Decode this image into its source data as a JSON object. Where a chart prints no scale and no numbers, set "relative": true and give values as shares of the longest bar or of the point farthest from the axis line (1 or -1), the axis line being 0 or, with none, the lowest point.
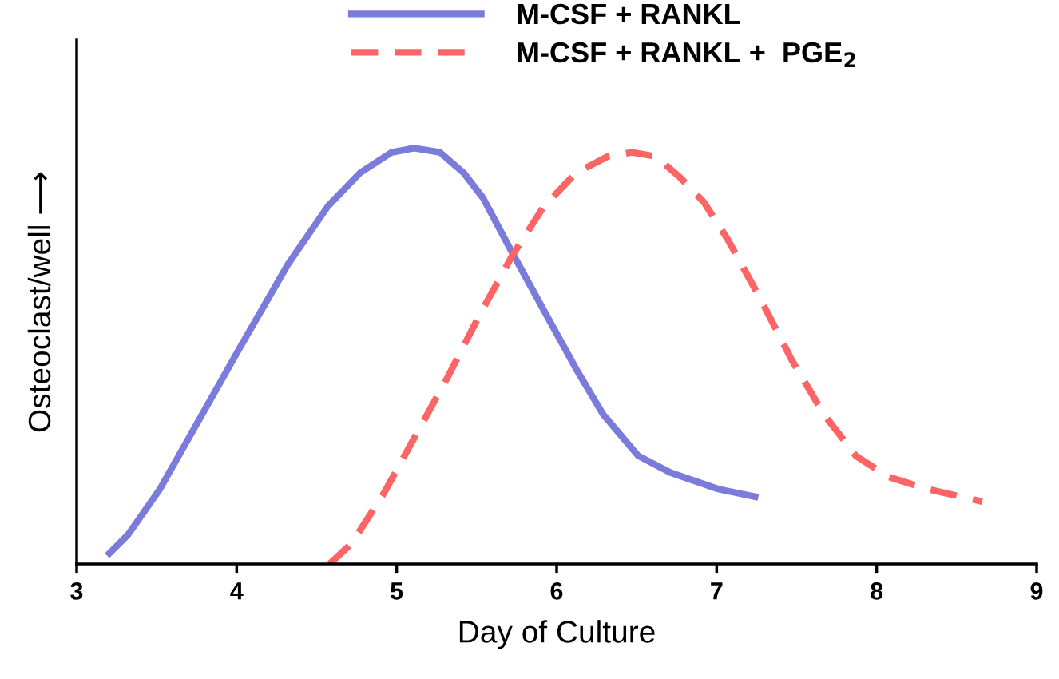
{
  "chart_data": {
    "type": "line",
    "relative": true,
    "xlabel": "Day of Culture",
    "ylabel": "Osteoclast/well ⟶",
    "xlim": [
      3,
      9
    ],
    "xticks": [
      3,
      4,
      5,
      6,
      7,
      8,
      9
    ],
    "grid": false,
    "legend": "top",
    "marker": "none",
    "series": [
      {
        "name": "M-CSF + RANKL",
        "color": "#7b7bdc",
        "line_style": "solid",
        "x": [
          3.19,
          3.32,
          3.52,
          3.77,
          4.02,
          4.32,
          4.57,
          4.77,
          4.97,
          5.11,
          5.27,
          5.42,
          5.54,
          5.72,
          5.92,
          6.12,
          6.29,
          6.51,
          6.71,
          7.01,
          7.26
        ],
        "values": [
          0.02,
          0.07,
          0.18,
          0.35,
          0.52,
          0.72,
          0.86,
          0.94,
          0.99,
          1.0,
          0.99,
          0.94,
          0.88,
          0.75,
          0.61,
          0.47,
          0.36,
          0.26,
          0.22,
          0.18,
          0.16
        ]
      },
      {
        "name": "M-CSF + RANKL +  PGE$_{2}$",
        "color": "#fd6466",
        "line_style": "dashed",
        "x": [
          4.58,
          4.72,
          4.92,
          5.12,
          5.32,
          5.52,
          5.72,
          5.92,
          6.12,
          6.32,
          6.47,
          6.62,
          6.77,
          6.92,
          7.07,
          7.27,
          7.47,
          7.67,
          7.87,
          8.07,
          8.32,
          8.66
        ],
        "values": [
          0.0,
          0.05,
          0.17,
          0.31,
          0.45,
          0.6,
          0.74,
          0.86,
          0.94,
          0.98,
          0.99,
          0.98,
          0.93,
          0.87,
          0.78,
          0.64,
          0.49,
          0.36,
          0.26,
          0.21,
          0.18,
          0.15
        ]
      }
    ]
  }
}
